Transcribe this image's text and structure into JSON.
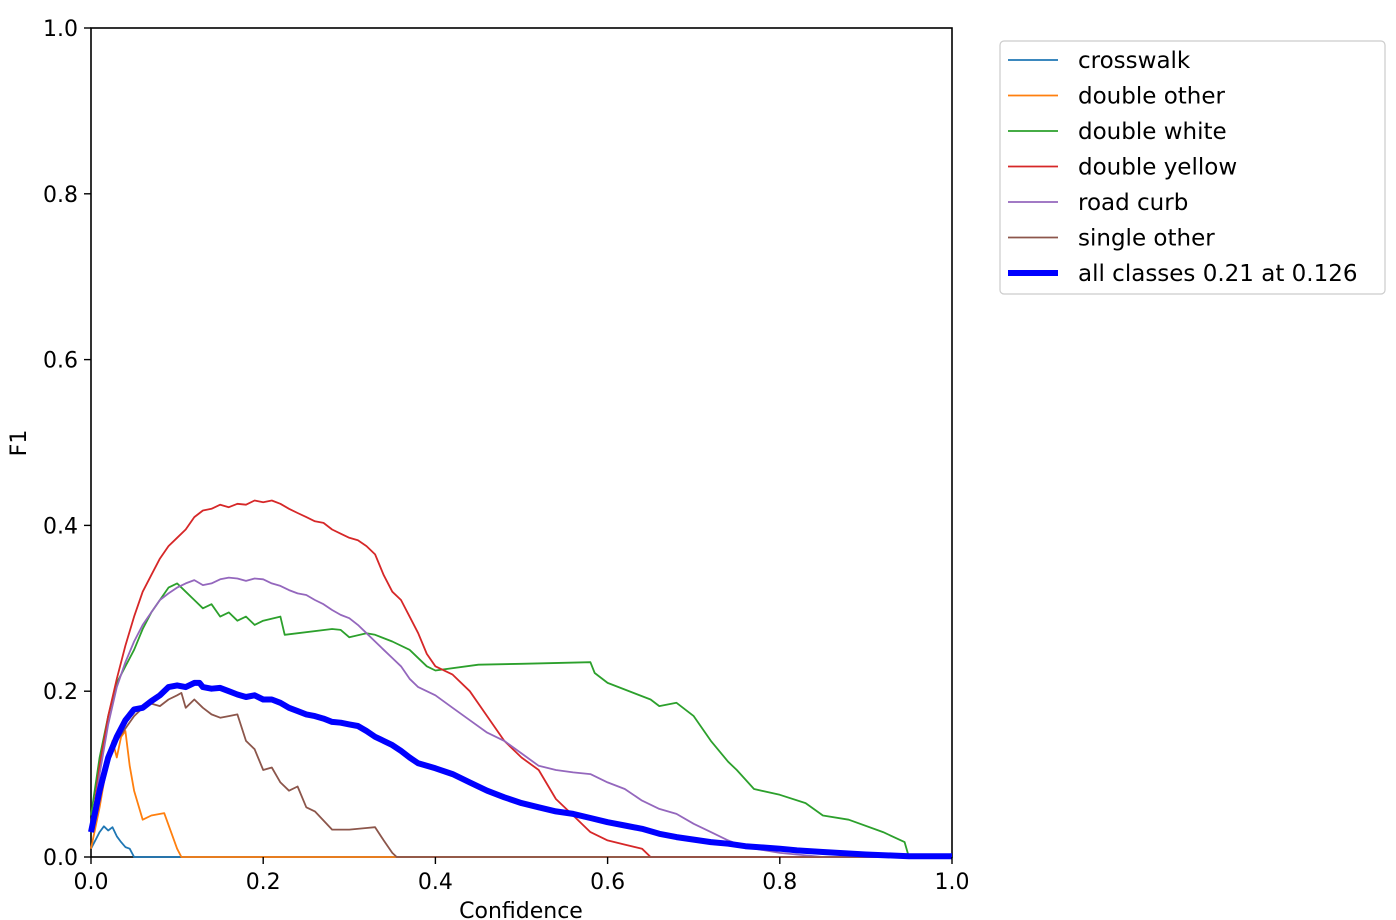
{
  "chart_data": {
    "type": "line",
    "title": "",
    "xlabel": "Confidence",
    "ylabel": "F1",
    "xlim": [
      0.0,
      1.0
    ],
    "ylim": [
      0.0,
      1.0
    ],
    "xticks": [
      "0.0",
      "0.2",
      "0.4",
      "0.6",
      "0.8",
      "1.0"
    ],
    "yticks": [
      "0.0",
      "0.2",
      "0.4",
      "0.6",
      "0.8",
      "1.0"
    ],
    "grid": false,
    "legend_position": "outside-top-right",
    "series": [
      {
        "name": "crosswalk",
        "color": "#1f77b4",
        "x": [
          0.0,
          0.005,
          0.01,
          0.015,
          0.02,
          0.025,
          0.03,
          0.035,
          0.04,
          0.045,
          0.05,
          0.1,
          1.0
        ],
        "y": [
          0.01,
          0.02,
          0.03,
          0.037,
          0.032,
          0.036,
          0.025,
          0.018,
          0.012,
          0.01,
          0.0,
          0.0,
          0.0
        ]
      },
      {
        "name": "double other",
        "color": "#ff7f0e",
        "x": [
          0.0,
          0.01,
          0.02,
          0.025,
          0.03,
          0.035,
          0.04,
          0.045,
          0.05,
          0.06,
          0.07,
          0.085,
          0.1,
          0.105,
          0.2,
          1.0
        ],
        "y": [
          0.01,
          0.06,
          0.12,
          0.14,
          0.12,
          0.145,
          0.152,
          0.11,
          0.08,
          0.045,
          0.05,
          0.053,
          0.01,
          0.0,
          0.0,
          0.0
        ]
      },
      {
        "name": "double white",
        "color": "#2ca02c",
        "x": [
          0.0,
          0.01,
          0.02,
          0.03,
          0.04,
          0.05,
          0.06,
          0.07,
          0.08,
          0.09,
          0.1,
          0.11,
          0.12,
          0.13,
          0.14,
          0.15,
          0.16,
          0.17,
          0.18,
          0.19,
          0.2,
          0.22,
          0.225,
          0.28,
          0.29,
          0.3,
          0.32,
          0.33,
          0.35,
          0.37,
          0.39,
          0.4,
          0.45,
          0.5,
          0.58,
          0.585,
          0.6,
          0.65,
          0.66,
          0.68,
          0.7,
          0.72,
          0.74,
          0.75,
          0.77,
          0.8,
          0.83,
          0.85,
          0.88,
          0.92,
          0.945,
          0.95,
          1.0
        ],
        "y": [
          0.05,
          0.12,
          0.17,
          0.21,
          0.23,
          0.25,
          0.275,
          0.295,
          0.31,
          0.325,
          0.33,
          0.32,
          0.31,
          0.3,
          0.305,
          0.29,
          0.295,
          0.285,
          0.29,
          0.28,
          0.285,
          0.29,
          0.268,
          0.275,
          0.274,
          0.265,
          0.27,
          0.268,
          0.26,
          0.25,
          0.23,
          0.225,
          0.232,
          0.233,
          0.235,
          0.222,
          0.21,
          0.19,
          0.182,
          0.186,
          0.17,
          0.14,
          0.115,
          0.105,
          0.082,
          0.075,
          0.065,
          0.05,
          0.045,
          0.03,
          0.018,
          0.0,
          0.0
        ]
      },
      {
        "name": "double yellow",
        "color": "#d62728",
        "x": [
          0.0,
          0.01,
          0.02,
          0.03,
          0.04,
          0.05,
          0.06,
          0.07,
          0.08,
          0.09,
          0.1,
          0.11,
          0.12,
          0.13,
          0.14,
          0.15,
          0.16,
          0.17,
          0.18,
          0.19,
          0.2,
          0.21,
          0.22,
          0.23,
          0.24,
          0.25,
          0.26,
          0.27,
          0.28,
          0.29,
          0.3,
          0.31,
          0.32,
          0.33,
          0.34,
          0.35,
          0.36,
          0.37,
          0.38,
          0.39,
          0.4,
          0.42,
          0.44,
          0.46,
          0.48,
          0.5,
          0.52,
          0.54,
          0.56,
          0.58,
          0.6,
          0.62,
          0.64,
          0.65,
          0.7,
          1.0
        ],
        "y": [
          0.03,
          0.11,
          0.17,
          0.215,
          0.255,
          0.29,
          0.32,
          0.34,
          0.36,
          0.375,
          0.385,
          0.395,
          0.41,
          0.418,
          0.42,
          0.425,
          0.422,
          0.426,
          0.425,
          0.43,
          0.428,
          0.43,
          0.426,
          0.42,
          0.415,
          0.41,
          0.405,
          0.403,
          0.395,
          0.39,
          0.385,
          0.382,
          0.375,
          0.365,
          0.34,
          0.32,
          0.31,
          0.29,
          0.27,
          0.245,
          0.23,
          0.22,
          0.2,
          0.17,
          0.14,
          0.12,
          0.105,
          0.07,
          0.05,
          0.03,
          0.02,
          0.015,
          0.01,
          0.0,
          0.0,
          0.0
        ]
      },
      {
        "name": "road curb",
        "color": "#9467bd",
        "x": [
          0.0,
          0.01,
          0.02,
          0.03,
          0.04,
          0.05,
          0.06,
          0.07,
          0.08,
          0.09,
          0.1,
          0.11,
          0.12,
          0.13,
          0.14,
          0.15,
          0.16,
          0.17,
          0.18,
          0.19,
          0.2,
          0.21,
          0.22,
          0.23,
          0.24,
          0.25,
          0.26,
          0.27,
          0.28,
          0.29,
          0.3,
          0.31,
          0.32,
          0.33,
          0.34,
          0.35,
          0.36,
          0.37,
          0.38,
          0.39,
          0.4,
          0.42,
          0.44,
          0.46,
          0.48,
          0.5,
          0.52,
          0.54,
          0.56,
          0.58,
          0.6,
          0.62,
          0.64,
          0.66,
          0.68,
          0.7,
          0.72,
          0.74,
          0.76,
          0.8,
          0.85,
          0.9,
          1.0
        ],
        "y": [
          0.03,
          0.1,
          0.16,
          0.205,
          0.235,
          0.26,
          0.28,
          0.295,
          0.31,
          0.318,
          0.325,
          0.33,
          0.334,
          0.328,
          0.33,
          0.335,
          0.337,
          0.336,
          0.333,
          0.336,
          0.335,
          0.33,
          0.327,
          0.322,
          0.318,
          0.316,
          0.31,
          0.305,
          0.298,
          0.292,
          0.288,
          0.28,
          0.27,
          0.26,
          0.25,
          0.24,
          0.23,
          0.215,
          0.205,
          0.2,
          0.195,
          0.18,
          0.165,
          0.15,
          0.14,
          0.125,
          0.11,
          0.105,
          0.102,
          0.1,
          0.09,
          0.082,
          0.068,
          0.058,
          0.052,
          0.04,
          0.03,
          0.02,
          0.012,
          0.005,
          0.0,
          0.0,
          0.0
        ]
      },
      {
        "name": "single other",
        "color": "#8c564b",
        "x": [
          0.0,
          0.01,
          0.02,
          0.03,
          0.04,
          0.05,
          0.06,
          0.07,
          0.08,
          0.09,
          0.1,
          0.105,
          0.11,
          0.12,
          0.13,
          0.14,
          0.15,
          0.16,
          0.17,
          0.18,
          0.19,
          0.2,
          0.21,
          0.22,
          0.23,
          0.24,
          0.25,
          0.26,
          0.28,
          0.3,
          0.32,
          0.33,
          0.34,
          0.35,
          0.355,
          0.4,
          1.0
        ],
        "y": [
          0.04,
          0.09,
          0.12,
          0.14,
          0.155,
          0.17,
          0.18,
          0.185,
          0.182,
          0.19,
          0.195,
          0.198,
          0.18,
          0.19,
          0.18,
          0.172,
          0.168,
          0.17,
          0.172,
          0.14,
          0.13,
          0.105,
          0.108,
          0.09,
          0.08,
          0.085,
          0.06,
          0.055,
          0.033,
          0.033,
          0.035,
          0.036,
          0.02,
          0.005,
          0.0,
          0.0,
          0.0
        ]
      },
      {
        "name": "all classes 0.21 at 0.126",
        "color": "#0000ff",
        "bold": true,
        "x": [
          0.0,
          0.01,
          0.02,
          0.03,
          0.04,
          0.05,
          0.06,
          0.07,
          0.08,
          0.09,
          0.1,
          0.11,
          0.12,
          0.126,
          0.13,
          0.14,
          0.15,
          0.16,
          0.17,
          0.18,
          0.19,
          0.2,
          0.21,
          0.22,
          0.23,
          0.24,
          0.25,
          0.26,
          0.27,
          0.28,
          0.29,
          0.3,
          0.31,
          0.32,
          0.33,
          0.34,
          0.35,
          0.36,
          0.37,
          0.38,
          0.39,
          0.4,
          0.42,
          0.44,
          0.46,
          0.48,
          0.5,
          0.52,
          0.54,
          0.56,
          0.58,
          0.6,
          0.62,
          0.64,
          0.66,
          0.68,
          0.7,
          0.72,
          0.74,
          0.76,
          0.8,
          0.82,
          0.85,
          0.9,
          0.95,
          1.0
        ],
        "y": [
          0.03,
          0.08,
          0.12,
          0.145,
          0.165,
          0.178,
          0.18,
          0.188,
          0.195,
          0.205,
          0.207,
          0.205,
          0.21,
          0.21,
          0.205,
          0.203,
          0.204,
          0.2,
          0.196,
          0.193,
          0.195,
          0.19,
          0.19,
          0.186,
          0.18,
          0.176,
          0.172,
          0.17,
          0.167,
          0.163,
          0.162,
          0.16,
          0.158,
          0.152,
          0.145,
          0.14,
          0.135,
          0.128,
          0.12,
          0.113,
          0.11,
          0.107,
          0.1,
          0.09,
          0.08,
          0.072,
          0.065,
          0.06,
          0.055,
          0.052,
          0.047,
          0.042,
          0.038,
          0.034,
          0.028,
          0.024,
          0.021,
          0.018,
          0.016,
          0.013,
          0.01,
          0.008,
          0.006,
          0.003,
          0.001,
          0.001
        ]
      }
    ]
  }
}
